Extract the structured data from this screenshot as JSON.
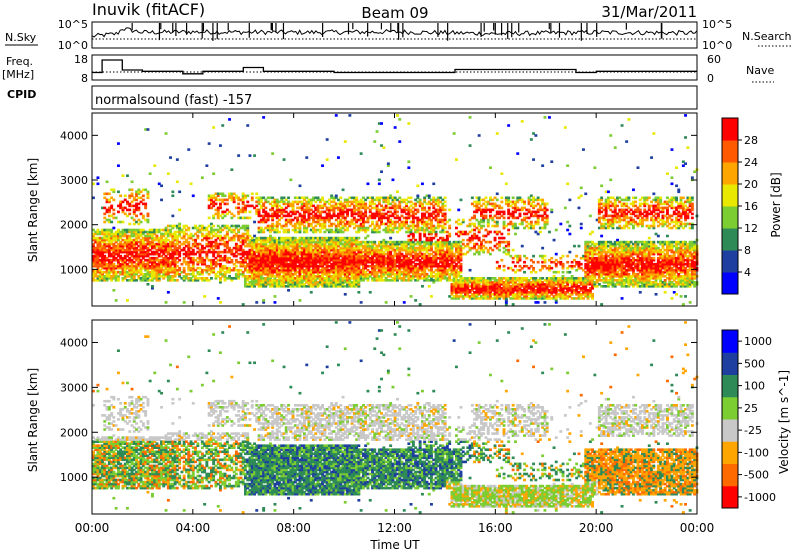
{
  "header": {
    "station": "Inuvik (fitACF)",
    "beam": "Beam 09",
    "date": "31/Mar/2011"
  },
  "left_labels": {
    "nsky": "N.Sky",
    "freq": "Freq.",
    "freq_unit": "[MHz]",
    "cpid": "CPID"
  },
  "right_labels": {
    "nsearch": "N.Search",
    "nave": "Nave"
  },
  "cpid_text": "normalsound (fast) -157",
  "colors": {
    "power": [
      "#0000ff",
      "#1e3fa0",
      "#2e8b57",
      "#7ccd32",
      "#e8e800",
      "#ffa500",
      "#ff5a00",
      "#ff0000"
    ],
    "velocity": [
      "#ff0000",
      "#ff6a00",
      "#ffa500",
      "#c8c8c8",
      "#7ccd32",
      "#2e8b57",
      "#1e3fa0",
      "#0000ff"
    ]
  },
  "chart_data": [
    {
      "type": "line",
      "panel": "noise",
      "y_left_ticks": [
        "10^5",
        "10^0"
      ],
      "y_right_ticks": [
        "10^5",
        "10^0"
      ],
      "series": [
        {
          "name": "N.Sky",
          "style": "solid"
        },
        {
          "name": "N.Search",
          "style": "dotted"
        }
      ],
      "x": [
        0,
        1,
        1.2,
        2,
        4,
        8,
        12,
        16,
        20,
        24
      ],
      "values": [
        0.45,
        0.55,
        0.75,
        0.6,
        0.62,
        0.6,
        0.62,
        0.55,
        0.6,
        0.58
      ]
    },
    {
      "type": "line",
      "panel": "freq_nave",
      "y_left_ticks": [
        "18",
        "8"
      ],
      "y_right_ticks": [
        "60",
        "0"
      ],
      "series": [
        {
          "name": "Freq.",
          "style": "solid",
          "x": [
            0,
            0.4,
            0.4,
            1.2,
            1.2,
            2.0,
            2.0,
            3.6,
            3.6,
            4.4,
            4.4,
            6.0,
            6.0,
            6.8,
            6.8,
            9.6,
            9.6,
            14.4,
            14.4,
            19.2,
            19.2,
            20.0,
            20.0,
            24
          ],
          "values": [
            11,
            11,
            16,
            16,
            12,
            12,
            11.5,
            11.5,
            10.5,
            10.5,
            11.5,
            11.5,
            13,
            13,
            11.5,
            11.5,
            11,
            11,
            12.2,
            12.2,
            11,
            11,
            11.5,
            11.5
          ]
        },
        {
          "name": "Nave",
          "style": "dotted",
          "x": [
            0,
            24
          ],
          "values": [
            11.2,
            11.2
          ]
        }
      ]
    },
    {
      "type": "heatmap",
      "panel": "power",
      "xlabel": "",
      "ylabel": "Slant Range [km]",
      "xlim": [
        0,
        24
      ],
      "ylim": [
        180,
        4500
      ],
      "y_ticks": [
        1000,
        2000,
        3000,
        4000
      ],
      "colorbar_label": "Power [dB]",
      "colorbar_ticks": [
        "4",
        "8",
        "12",
        "16",
        "20",
        "24",
        "28"
      ]
    },
    {
      "type": "heatmap",
      "panel": "velocity",
      "xlabel": "Time UT",
      "ylabel": "Slant Range [km]",
      "xlim": [
        0,
        24
      ],
      "ylim": [
        180,
        4500
      ],
      "x_ticks": [
        "00:00",
        "04:00",
        "08:00",
        "12:00",
        "16:00",
        "20:00",
        "00:00"
      ],
      "y_ticks": [
        1000,
        2000,
        3000,
        4000
      ],
      "colorbar_label": "Velocity [m s^-1]",
      "colorbar_ticks": [
        "1000",
        "500",
        "100",
        "25",
        "-25",
        "-100",
        "-500",
        "-1000"
      ]
    }
  ]
}
